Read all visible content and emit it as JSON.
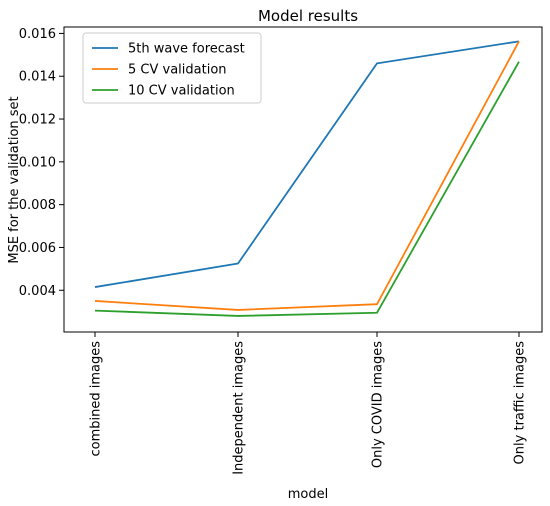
{
  "chart_data": {
    "type": "line",
    "title": "Model results",
    "xlabel": "model",
    "ylabel": "MSE for the validation set",
    "categories": [
      "combined images",
      "Independent images",
      "Only COVID images",
      "Only traffic images"
    ],
    "ylim": [
      0.00205,
      0.0163
    ],
    "yticks": [
      "0.004",
      "0.006",
      "0.008",
      "0.010",
      "0.012",
      "0.014",
      "0.016"
    ],
    "ytick_values": [
      0.004,
      0.006,
      0.008,
      0.01,
      0.012,
      0.014,
      0.016
    ],
    "grid": false,
    "legend_position": "top-left",
    "series": [
      {
        "name": "5th wave forecast",
        "color": "#1f77b4",
        "values": [
          0.00415,
          0.00525,
          0.0146,
          0.01563
        ]
      },
      {
        "name": "5 CV validation",
        "color": "#ff7f0e",
        "values": [
          0.0035,
          0.00308,
          0.00335,
          0.01563
        ]
      },
      {
        "name": "10 CV validation",
        "color": "#2ca02c",
        "values": [
          0.00305,
          0.0028,
          0.00295,
          0.01468
        ]
      }
    ]
  }
}
